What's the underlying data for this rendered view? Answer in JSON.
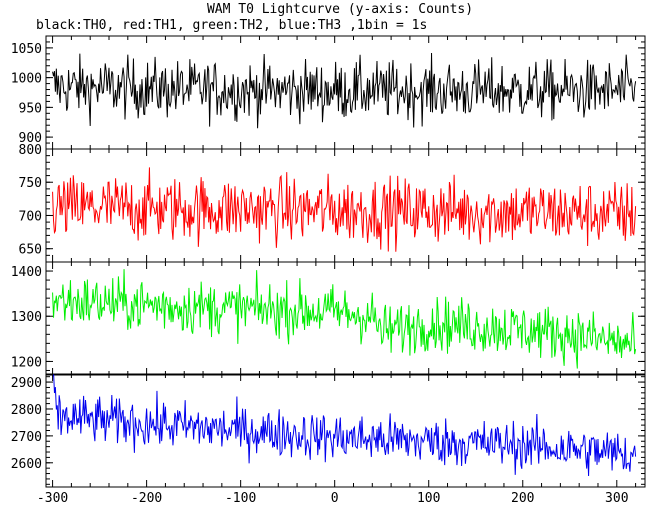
{
  "chart_data": {
    "type": "line",
    "title": "WAM T0 Lightcurve (y-axis: Counts)",
    "subtitle": "black:TH0, red:TH1, green:TH2, blue:TH3 ,1bin = 1s",
    "xlim": [
      -307,
      330
    ],
    "x_ticks": [
      -300,
      -200,
      -100,
      0,
      100,
      200,
      300
    ],
    "x_tick_labels": [
      "-300",
      "-200",
      "-100",
      "0",
      "100",
      "200",
      "300"
    ],
    "x_range": [
      -300,
      320
    ],
    "grid": false,
    "series": [
      {
        "name": "TH0",
        "color": "#000000",
        "ylim": [
          880,
          1070
        ],
        "y_ticks": [
          900,
          950,
          1000,
          1050
        ],
        "y_tick_labels": [
          "900",
          "950",
          "1000",
          "1050"
        ],
        "trend": [
          [
            -300,
            985
          ],
          [
            -150,
            980
          ],
          [
            0,
            978
          ],
          [
            150,
            978
          ],
          [
            320,
            978
          ]
        ],
        "noise": 25
      },
      {
        "name": "TH1",
        "color": "#ff0000",
        "ylim": [
          630,
          800
        ],
        "y_ticks": [
          650,
          700,
          750,
          800
        ],
        "y_tick_labels": [
          "650",
          "700",
          "750",
          "800"
        ],
        "trend": [
          [
            -300,
            712
          ],
          [
            -150,
            710
          ],
          [
            0,
            708
          ],
          [
            150,
            706
          ],
          [
            320,
            702
          ]
        ],
        "noise": 25
      },
      {
        "name": "TH2",
        "color": "#00ee00",
        "ylim": [
          1170,
          1420
        ],
        "y_ticks": [
          1200,
          1300,
          1400
        ],
        "y_tick_labels": [
          "1200",
          "1300",
          "1400"
        ],
        "trend": [
          [
            -300,
            1335
          ],
          [
            -150,
            1320
          ],
          [
            0,
            1310
          ],
          [
            40,
            1300
          ],
          [
            50,
            1265
          ],
          [
            100,
            1285
          ],
          [
            200,
            1270
          ],
          [
            250,
            1260
          ],
          [
            320,
            1235
          ]
        ],
        "noise": 30
      },
      {
        "name": "TH3",
        "color": "#0000ee",
        "ylim": [
          2510,
          2930
        ],
        "y_ticks": [
          2600,
          2700,
          2800,
          2900
        ],
        "y_tick_labels": [
          "2600",
          "2700",
          "2800",
          "2900"
        ],
        "trend": [
          [
            -300,
            2900
          ],
          [
            -295,
            2770
          ],
          [
            -200,
            2745
          ],
          [
            -100,
            2720
          ],
          [
            0,
            2695
          ],
          [
            100,
            2680
          ],
          [
            200,
            2665
          ],
          [
            320,
            2630
          ]
        ],
        "noise": 45
      }
    ]
  }
}
